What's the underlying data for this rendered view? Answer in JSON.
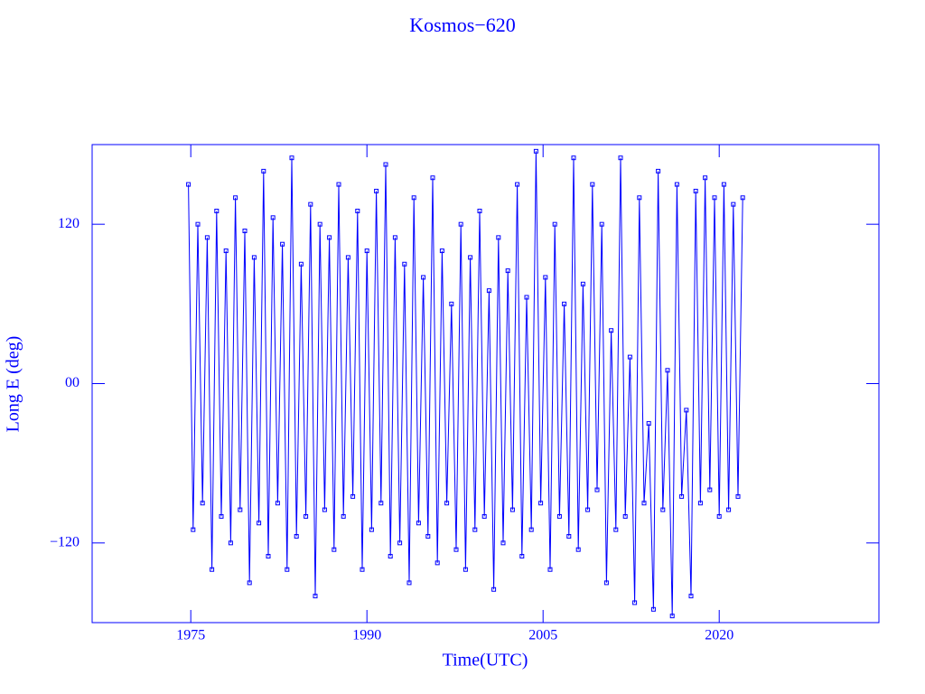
{
  "chart_data": {
    "type": "line",
    "title": "Kosmos−620",
    "x_label": "Time(UTC)",
    "y_label": "Long E (deg)",
    "color": "#0000ff",
    "xlim": [
      1966.6,
      2033.6
    ],
    "xticks": [
      1975,
      1990,
      2005,
      2020
    ],
    "ylim": [
      -180,
      180
    ],
    "yticks": [
      {
        "value": -120,
        "label": "−120"
      },
      {
        "value": 0,
        "label": "00"
      },
      120
    ],
    "x": [
      1974.8,
      1975.2,
      1975.6,
      1976.0,
      1976.4,
      1976.8,
      1977.2,
      1977.6,
      1978.0,
      1978.4,
      1978.8,
      1979.2,
      1979.6,
      1980.0,
      1980.4,
      1980.8,
      1981.2,
      1981.6,
      1982.0,
      1982.4,
      1982.8,
      1983.2,
      1983.6,
      1984.0,
      1984.4,
      1984.8,
      1985.2,
      1985.6,
      1986.0,
      1986.4,
      1986.8,
      1987.2,
      1987.6,
      1988.0,
      1988.4,
      1988.8,
      1989.2,
      1989.6,
      1990.0,
      1990.4,
      1990.8,
      1991.2,
      1991.6,
      1992.0,
      1992.4,
      1992.8,
      1993.2,
      1993.6,
      1994.0,
      1994.4,
      1994.8,
      1995.2,
      1995.6,
      1996.0,
      1996.4,
      1996.8,
      1997.2,
      1997.6,
      1998.0,
      1998.4,
      1998.8,
      1999.2,
      1999.6,
      2000.0,
      2000.4,
      2000.8,
      2001.2,
      2001.6,
      2002.0,
      2002.4,
      2002.8,
      2003.2,
      2003.6,
      2004.0,
      2004.4,
      2004.8,
      2005.2,
      2005.6,
      2006.0,
      2006.4,
      2006.8,
      2007.2,
      2007.6,
      2008.0,
      2008.4,
      2008.8,
      2009.2,
      2009.6,
      2010.0,
      2010.4,
      2010.8,
      2011.2,
      2011.6,
      2012.0,
      2012.4,
      2012.8,
      2013.2,
      2013.6,
      2014.0,
      2014.4,
      2014.8,
      2015.2,
      2015.6,
      2016.0,
      2016.4,
      2016.8,
      2017.2,
      2017.6,
      2018.0,
      2018.4,
      2018.8,
      2019.2,
      2019.6,
      2020.0,
      2020.4,
      2020.8,
      2021.2,
      2021.6,
      2022.0
    ],
    "values": [
      150,
      -110,
      120,
      -90,
      110,
      -140,
      130,
      -100,
      100,
      -120,
      140,
      -95,
      115,
      -150,
      95,
      -105,
      160,
      -130,
      125,
      -90,
      105,
      -140,
      170,
      -115,
      90,
      -100,
      135,
      -160,
      120,
      -95,
      110,
      -125,
      150,
      -100,
      95,
      -85,
      130,
      -140,
      100,
      -110,
      145,
      -90,
      165,
      -130,
      110,
      -120,
      90,
      -150,
      140,
      -105,
      80,
      -115,
      155,
      -135,
      100,
      -90,
      60,
      -125,
      120,
      -140,
      95,
      -110,
      130,
      -100,
      70,
      -155,
      110,
      -120,
      85,
      -95,
      150,
      -130,
      65,
      -110,
      175,
      -90,
      80,
      -140,
      120,
      -100,
      60,
      -115,
      170,
      -125,
      75,
      -95,
      150,
      -80,
      120,
      -150,
      40,
      -110,
      170,
      -100,
      20,
      -165,
      140,
      -90,
      -30,
      -170,
      160,
      -95,
      10,
      -175,
      150,
      -85,
      -20,
      -160,
      145,
      -90,
      155,
      -80,
      140,
      -100,
      150,
      -95,
      135,
      -85,
      140
    ]
  }
}
